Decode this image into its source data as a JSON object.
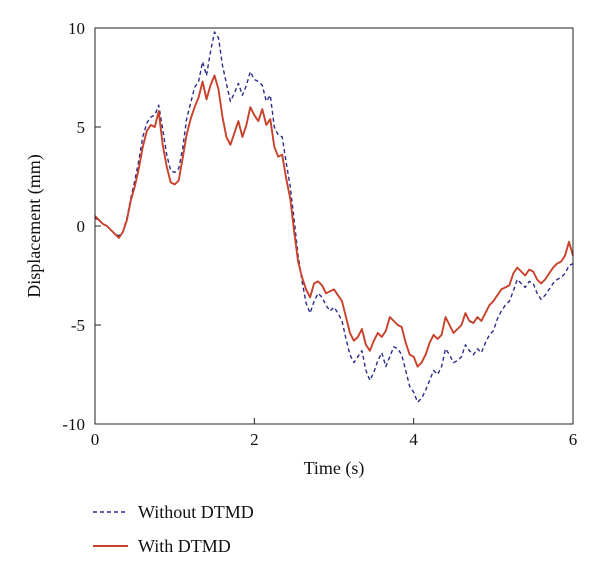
{
  "chart_data": {
    "type": "line",
    "title": "",
    "xlabel": "Time (s)",
    "ylabel": "Displacement (mm)",
    "xlim": [
      0,
      6
    ],
    "ylim": [
      -10,
      10
    ],
    "x_ticks": [
      0,
      2,
      4,
      6
    ],
    "y_ticks": [
      10,
      5,
      0,
      -5,
      -10
    ],
    "x_tick_labels": [
      "0",
      "2",
      "4",
      "6"
    ],
    "y_tick_labels": [
      "10",
      "5",
      "0",
      "-5",
      "-10"
    ],
    "grid": false,
    "legend_position": "bottom-left",
    "series": [
      {
        "name": "Without DTMD",
        "color": "#2b2b8c",
        "style": "dashed",
        "x": [
          0.0,
          0.05,
          0.1,
          0.15,
          0.2,
          0.25,
          0.3,
          0.35,
          0.4,
          0.45,
          0.5,
          0.55,
          0.6,
          0.65,
          0.7,
          0.75,
          0.8,
          0.85,
          0.9,
          0.95,
          1.0,
          1.05,
          1.1,
          1.15,
          1.2,
          1.25,
          1.3,
          1.35,
          1.4,
          1.45,
          1.5,
          1.55,
          1.6,
          1.65,
          1.7,
          1.75,
          1.8,
          1.85,
          1.9,
          1.95,
          2.0,
          2.05,
          2.1,
          2.15,
          2.2,
          2.25,
          2.3,
          2.35,
          2.4,
          2.45,
          2.5,
          2.55,
          2.6,
          2.65,
          2.7,
          2.75,
          2.8,
          2.85,
          2.9,
          2.95,
          3.0,
          3.05,
          3.1,
          3.15,
          3.2,
          3.25,
          3.3,
          3.35,
          3.4,
          3.45,
          3.5,
          3.55,
          3.6,
          3.65,
          3.7,
          3.75,
          3.8,
          3.85,
          3.9,
          3.95,
          4.0,
          4.05,
          4.1,
          4.15,
          4.2,
          4.25,
          4.3,
          4.35,
          4.4,
          4.45,
          4.5,
          4.55,
          4.6,
          4.65,
          4.7,
          4.75,
          4.8,
          4.85,
          4.9,
          4.95,
          5.0,
          5.05,
          5.1,
          5.15,
          5.2,
          5.25,
          5.3,
          5.35,
          5.4,
          5.45,
          5.5,
          5.55,
          5.6,
          5.65,
          5.7,
          5.75,
          5.8,
          5.85,
          5.9,
          5.95,
          6.0
        ],
        "values": [
          0.4,
          0.3,
          0.1,
          0.0,
          -0.2,
          -0.4,
          -0.5,
          -0.3,
          0.4,
          1.4,
          2.3,
          3.3,
          4.5,
          5.2,
          5.5,
          5.6,
          6.1,
          4.9,
          3.6,
          2.8,
          2.7,
          2.9,
          3.9,
          5.4,
          6.2,
          7.0,
          7.3,
          8.3,
          7.6,
          8.8,
          9.8,
          9.5,
          8.1,
          7.2,
          6.3,
          6.7,
          7.2,
          6.6,
          7.1,
          7.8,
          7.4,
          7.3,
          7.1,
          6.3,
          6.6,
          5.0,
          4.6,
          4.5,
          3.2,
          2.0,
          0.3,
          -1.5,
          -2.8,
          -3.9,
          -4.4,
          -3.8,
          -3.4,
          -3.6,
          -4.0,
          -4.3,
          -4.1,
          -4.4,
          -4.8,
          -5.7,
          -6.5,
          -6.9,
          -6.6,
          -6.3,
          -7.3,
          -7.8,
          -7.4,
          -6.8,
          -6.4,
          -7.1,
          -6.6,
          -6.1,
          -6.2,
          -6.5,
          -7.3,
          -8.1,
          -8.4,
          -8.9,
          -8.7,
          -8.3,
          -7.8,
          -7.3,
          -7.5,
          -7.1,
          -6.2,
          -6.5,
          -6.9,
          -6.8,
          -6.6,
          -6.0,
          -6.3,
          -6.5,
          -6.2,
          -6.4,
          -5.9,
          -5.5,
          -5.3,
          -4.7,
          -4.3,
          -4.0,
          -3.8,
          -3.3,
          -2.7,
          -2.9,
          -3.1,
          -2.8,
          -2.9,
          -3.4,
          -3.7,
          -3.5,
          -3.2,
          -2.9,
          -2.7,
          -2.6,
          -2.4,
          -2.0,
          -1.9
        ]
      },
      {
        "name": "With DTMD",
        "color": "#c8412a",
        "style": "solid",
        "x": [
          0.0,
          0.05,
          0.1,
          0.15,
          0.2,
          0.25,
          0.3,
          0.35,
          0.4,
          0.45,
          0.5,
          0.55,
          0.6,
          0.65,
          0.7,
          0.75,
          0.8,
          0.85,
          0.9,
          0.95,
          1.0,
          1.05,
          1.1,
          1.15,
          1.2,
          1.25,
          1.3,
          1.35,
          1.4,
          1.45,
          1.5,
          1.55,
          1.6,
          1.65,
          1.7,
          1.75,
          1.8,
          1.85,
          1.9,
          1.95,
          2.0,
          2.05,
          2.1,
          2.15,
          2.2,
          2.25,
          2.3,
          2.35,
          2.4,
          2.45,
          2.5,
          2.55,
          2.6,
          2.65,
          2.7,
          2.75,
          2.8,
          2.85,
          2.9,
          2.95,
          3.0,
          3.05,
          3.1,
          3.15,
          3.2,
          3.25,
          3.3,
          3.35,
          3.4,
          3.45,
          3.5,
          3.55,
          3.6,
          3.65,
          3.7,
          3.75,
          3.8,
          3.85,
          3.9,
          3.95,
          4.0,
          4.05,
          4.1,
          4.15,
          4.2,
          4.25,
          4.3,
          4.35,
          4.4,
          4.45,
          4.5,
          4.55,
          4.6,
          4.65,
          4.7,
          4.75,
          4.8,
          4.85,
          4.9,
          4.95,
          5.0,
          5.05,
          5.1,
          5.15,
          5.2,
          5.25,
          5.3,
          5.35,
          5.4,
          5.45,
          5.5,
          5.55,
          5.6,
          5.65,
          5.7,
          5.75,
          5.8,
          5.85,
          5.9,
          5.95,
          6.0
        ],
        "values": [
          0.5,
          0.3,
          0.1,
          0.0,
          -0.2,
          -0.4,
          -0.6,
          -0.3,
          0.3,
          1.3,
          2.0,
          2.9,
          4.0,
          4.8,
          5.1,
          5.0,
          5.8,
          4.1,
          3.0,
          2.2,
          2.1,
          2.3,
          3.4,
          4.6,
          5.4,
          6.0,
          6.5,
          7.3,
          6.4,
          7.1,
          7.6,
          6.9,
          5.5,
          4.5,
          4.1,
          4.7,
          5.3,
          4.5,
          5.1,
          6.0,
          5.6,
          5.3,
          5.9,
          5.1,
          5.4,
          4.0,
          3.5,
          3.6,
          2.4,
          1.4,
          -0.3,
          -1.8,
          -2.6,
          -3.2,
          -3.6,
          -2.9,
          -2.8,
          -3.0,
          -3.4,
          -3.3,
          -3.2,
          -3.5,
          -3.8,
          -4.6,
          -5.4,
          -5.8,
          -5.6,
          -5.2,
          -6.0,
          -6.3,
          -5.8,
          -5.4,
          -5.6,
          -5.3,
          -4.6,
          -4.8,
          -5.0,
          -5.1,
          -5.9,
          -6.5,
          -6.6,
          -7.1,
          -6.9,
          -6.5,
          -5.9,
          -5.5,
          -5.7,
          -5.5,
          -4.6,
          -5.0,
          -5.4,
          -5.2,
          -5.0,
          -4.4,
          -4.8,
          -4.9,
          -4.6,
          -4.8,
          -4.4,
          -4.0,
          -3.8,
          -3.5,
          -3.2,
          -3.1,
          -3.0,
          -2.4,
          -2.1,
          -2.3,
          -2.5,
          -2.2,
          -2.3,
          -2.7,
          -2.9,
          -2.7,
          -2.4,
          -2.1,
          -1.9,
          -1.8,
          -1.5,
          -0.8,
          -1.5
        ]
      }
    ]
  }
}
